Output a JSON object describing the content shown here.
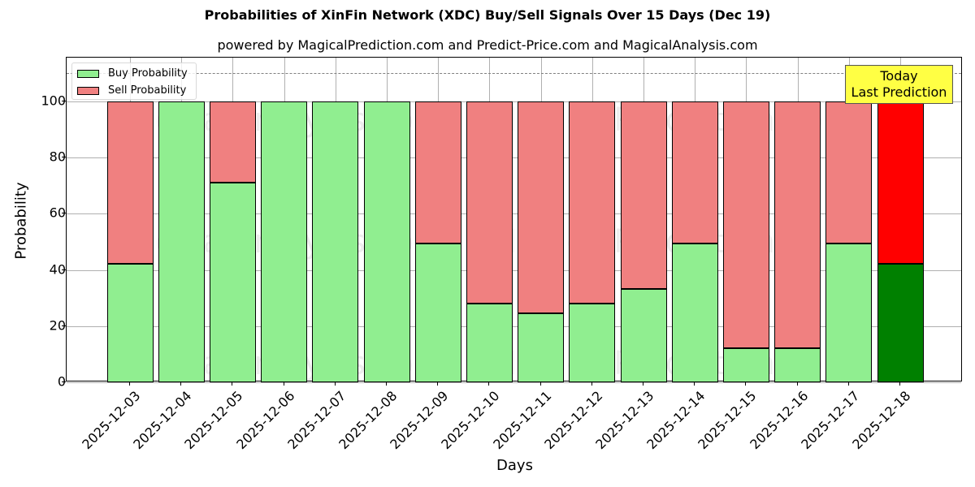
{
  "chart_data": {
    "type": "bar",
    "stacked": true,
    "title": "Probabilities of XinFin Network (XDC) Buy/Sell Signals Over 15 Days (Dec 19)",
    "subtitle": "powered by MagicalPrediction.com and Predict-Price.com and MagicalAnalysis.com",
    "xlabel": "Days",
    "ylabel": "Probability",
    "ylim": [
      0,
      115
    ],
    "yticks": [
      0,
      20,
      40,
      60,
      80,
      100
    ],
    "grid": true,
    "legend_position": "upper left",
    "categories": [
      "2025-12-03",
      "2025-12-04",
      "2025-12-05",
      "2025-12-06",
      "2025-12-07",
      "2025-12-08",
      "2025-12-09",
      "2025-12-10",
      "2025-12-11",
      "2025-12-12",
      "2025-12-13",
      "2025-12-14",
      "2025-12-15",
      "2025-12-16",
      "2025-12-17",
      "2025-12-18"
    ],
    "series": [
      {
        "name": "Buy Probability",
        "color": "#90ee90",
        "values": [
          42.2,
          100,
          71.1,
          100,
          100,
          100,
          49.4,
          28.0,
          24.6,
          28.0,
          33.2,
          49.4,
          12.1,
          12.1,
          49.4,
          42.2
        ]
      },
      {
        "name": "Sell Probability",
        "color": "#f08080",
        "values": [
          57.8,
          0,
          28.9,
          0,
          0,
          0,
          50.6,
          72.0,
          75.4,
          72.0,
          66.8,
          50.6,
          87.9,
          87.9,
          50.6,
          57.8
        ]
      }
    ],
    "highlight": {
      "index": 15,
      "buy_color": "#008000",
      "sell_color": "#ff0000"
    },
    "reference_line": {
      "y": 110,
      "style": "dashed",
      "color": "#808080"
    },
    "annotation": {
      "line1": "Today",
      "line2": "Last Prediction",
      "background": "#ffff44"
    },
    "watermarks": [
      "MagicalAnalysis.com",
      "MagicalPrediction.com"
    ]
  }
}
